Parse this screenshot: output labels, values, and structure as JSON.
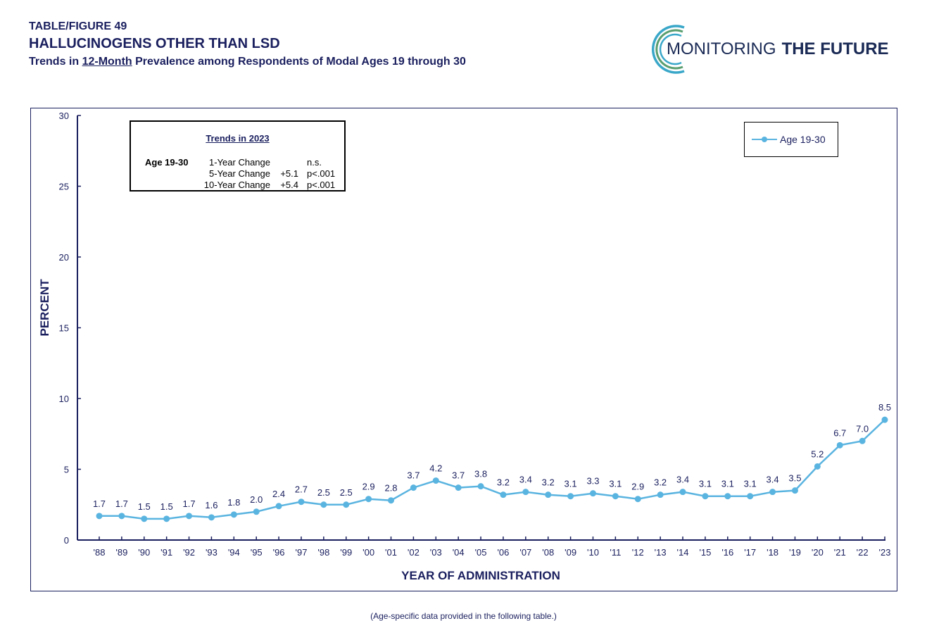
{
  "header": {
    "figure_label": "TABLE/FIGURE 49",
    "title": "HALLUCINOGENS OTHER THAN LSD",
    "subtitle_prefix": "Trends in ",
    "subtitle_underlined": "12-Month",
    "subtitle_suffix": " Prevalence among Respondents of Modal Ages 19 through 30"
  },
  "logo": {
    "text_light": "MONITORING",
    "text_bold": "THE FUTURE"
  },
  "trends_box": {
    "title": "Trends in 2023",
    "group": "Age 19-30",
    "rows": [
      {
        "label": "1-Year Change",
        "change": "",
        "sig": "n.s."
      },
      {
        "label": "5-Year Change",
        "change": "+5.1",
        "sig": "p<.001"
      },
      {
        "label": "10-Year Change",
        "change": "+5.4",
        "sig": "p<.001"
      }
    ]
  },
  "footer_note": "(Age-specific data provided in the following table.)",
  "colors": {
    "navy": "#1a1f5e",
    "series": "#5ab4e0",
    "logo_teal": "#3aa7c9",
    "logo_green": "#5a9e6f"
  },
  "chart_data": {
    "type": "line",
    "title": "HALLUCINOGENS OTHER THAN LSD",
    "xlabel": "YEAR OF ADMINISTRATION",
    "ylabel": "PERCENT",
    "ylim": [
      0,
      30
    ],
    "yticks": [
      0,
      5,
      10,
      15,
      20,
      25,
      30
    ],
    "grid": false,
    "legend_position": "top-right",
    "x": [
      "'88",
      "'89",
      "'90",
      "'91",
      "'92",
      "'93",
      "'94",
      "'95",
      "'96",
      "'97",
      "'98",
      "'99",
      "'00",
      "'01",
      "'02",
      "'03",
      "'04",
      "'05",
      "'06",
      "'07",
      "'08",
      "'09",
      "'10",
      "'11",
      "'12",
      "'13",
      "'14",
      "'15",
      "'16",
      "'17",
      "'18",
      "'19",
      "'20",
      "'21",
      "'22",
      "'23"
    ],
    "series": [
      {
        "name": "Age 19-30",
        "values": [
          1.7,
          1.7,
          1.5,
          1.5,
          1.7,
          1.6,
          1.8,
          2.0,
          2.4,
          2.7,
          2.5,
          2.5,
          2.9,
          2.8,
          3.7,
          4.2,
          3.7,
          3.8,
          3.2,
          3.4,
          3.2,
          3.1,
          3.3,
          3.1,
          2.9,
          3.2,
          3.4,
          3.1,
          3.1,
          3.1,
          3.4,
          3.5,
          5.2,
          6.7,
          7.0,
          8.5
        ],
        "labels": [
          "1.7",
          "1.7",
          "1.5",
          "1.5",
          "1.7",
          "1.6",
          "1.8",
          "2.0",
          "2.4",
          "2.7",
          "2.5",
          "2.5",
          "2.9",
          "2.8",
          "3.7",
          "4.2",
          "3.7",
          "3.8",
          "3.2",
          "3.4",
          "3.2",
          "3.1",
          "3.3",
          "3.1",
          "2.9",
          "3.2",
          "3.4",
          "3.1",
          "3.1",
          "3.1",
          "3.4",
          "3.5",
          "5.2",
          "6.7",
          "7.0",
          "8.5"
        ]
      }
    ]
  }
}
